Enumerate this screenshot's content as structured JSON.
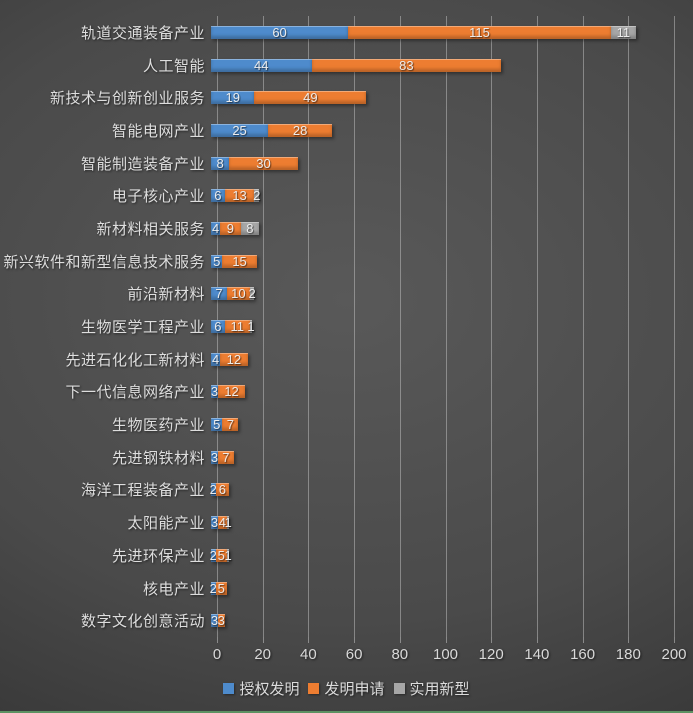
{
  "chart_data": {
    "type": "bar",
    "orientation": "horizontal",
    "stacked": true,
    "title": "",
    "xlabel": "",
    "ylabel": "",
    "xlim": [
      0,
      200
    ],
    "x_ticks": [
      0,
      20,
      40,
      60,
      80,
      100,
      120,
      140,
      160,
      180,
      200
    ],
    "grid": "vertical",
    "legend_position": "bottom",
    "categories": [
      "轨道交通装备产业",
      "人工智能",
      "新技术与创新创业服务",
      "智能电网产业",
      "智能制造装备产业",
      "电子核心产业",
      "新材料相关服务",
      "新兴软件和新型信息技术服务",
      "前沿新材料",
      "生物医学工程产业",
      "先进石化化工新材料",
      "下一代信息网络产业",
      "生物医药产业",
      "先进钢铁材料",
      "海洋工程装备产业",
      "太阳能产业",
      "先进环保产业",
      "核电产业",
      "数字文化创意活动"
    ],
    "series": [
      {
        "key": "granted-invention",
        "name": "授权发明",
        "color": "#4e8bcc",
        "values": [
          60,
          44,
          19,
          25,
          8,
          6,
          4,
          5,
          7,
          6,
          4,
          3,
          5,
          3,
          2,
          3,
          2,
          2,
          3
        ]
      },
      {
        "key": "invention-application",
        "name": "发明申请",
        "color": "#ed7d31",
        "values": [
          115,
          83,
          49,
          28,
          30,
          13,
          9,
          15,
          10,
          11,
          12,
          12,
          7,
          7,
          6,
          4,
          5,
          5,
          3
        ]
      },
      {
        "key": "utility-model",
        "name": "实用新型",
        "color": "#a6a6a6",
        "values": [
          11,
          0,
          0,
          0,
          0,
          2,
          8,
          0,
          2,
          1,
          0,
          0,
          0,
          0,
          0,
          1,
          1,
          0,
          0
        ]
      }
    ]
  },
  "colors": {
    "background_center": "#595959",
    "background_edge": "#262626",
    "gridline": "rgba(195,195,195,0.5)",
    "category_label": "#dedede",
    "axis_label": "#d9d9d9",
    "value_label": "#ececec",
    "bottom_edge_line": "#5d9162"
  }
}
